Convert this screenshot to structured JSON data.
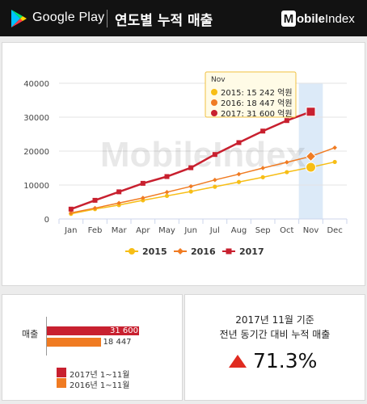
{
  "header": {
    "platform": "Google Play",
    "title": "연도별 누적 매출",
    "brand_box": "M",
    "brand_bold": "obile",
    "brand_rest": "Index"
  },
  "watermark": "MobileIndex",
  "colors": {
    "s2015": "#f7be16",
    "s2016": "#f07b22",
    "s2017": "#c8202f",
    "highlight": "#dceaf8",
    "tooltip_bg": "#fffbe6",
    "tooltip_border": "#f0c040",
    "bar2017": "#c8202f",
    "bar2016": "#f07b22",
    "up": "#e02b20"
  },
  "chart_data": {
    "type": "line",
    "categories": [
      "Jan",
      "Feb",
      "Mar",
      "Apr",
      "May",
      "Jun",
      "Jul",
      "Aug",
      "Sep",
      "Oct",
      "Nov",
      "Dec"
    ],
    "series": [
      {
        "name": "2015",
        "marker": "circle",
        "values": [
          1500,
          2900,
          4100,
          5500,
          6800,
          8100,
          9500,
          10900,
          12300,
          13800,
          15242,
          16800
        ]
      },
      {
        "name": "2016",
        "marker": "diamond",
        "values": [
          1800,
          3200,
          4700,
          6200,
          7900,
          9600,
          11500,
          13200,
          15000,
          16700,
          18447,
          21000
        ]
      },
      {
        "name": "2017",
        "marker": "square",
        "values": [
          2900,
          5500,
          8000,
          10500,
          12500,
          15100,
          19000,
          22500,
          25900,
          29000,
          31600,
          null
        ]
      }
    ],
    "ylim": [
      0,
      40000
    ],
    "yticks": [
      0,
      10000,
      20000,
      30000,
      40000
    ],
    "grid": true,
    "highlight_category": "Nov",
    "tooltip": {
      "title": "Nov",
      "rows": [
        {
          "label": "2015: 15 242 억원"
        },
        {
          "label": "2016: 18 447 억원"
        },
        {
          "label": "2017: 31 600 억원"
        }
      ]
    },
    "legend_position": "bottom"
  },
  "comparison": {
    "category_label": "매출",
    "bars": [
      {
        "label": "31 600",
        "value": 31600
      },
      {
        "label": "18 447",
        "value": 18447
      }
    ],
    "legend": [
      "2017년 1~11월",
      "2016년 1~11월"
    ]
  },
  "summary": {
    "line1": "2017년 11월 기준",
    "line2": "전년 동기간 대비 누적 매출",
    "change": "71.3%",
    "direction": "up"
  }
}
